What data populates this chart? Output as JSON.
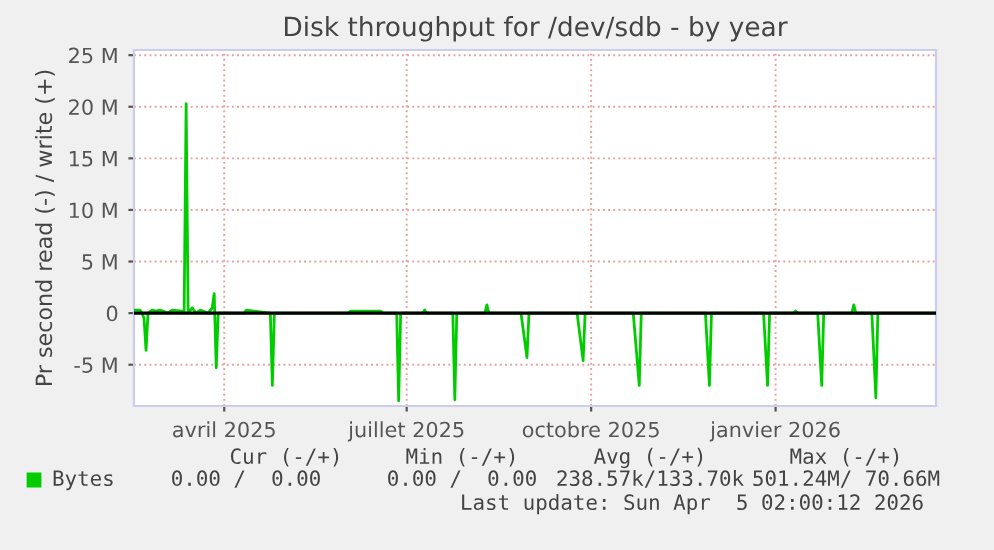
{
  "chart_data": {
    "type": "line",
    "title": "Disk throughput for /dev/sdb - by year",
    "ylabel": "Pr second read (-) / write (+)",
    "xlim": [
      "2025-03-01",
      "2026-04-05"
    ],
    "xticks": [
      {
        "value": "2025-04-15",
        "label": "avril 2025"
      },
      {
        "value": "2025-07-15",
        "label": "juillet 2025"
      },
      {
        "value": "2025-10-15",
        "label": "octobre 2025"
      },
      {
        "value": "2026-01-15",
        "label": "janvier 2026"
      }
    ],
    "ylim": [
      -9000000,
      25500000
    ],
    "yticks": [
      {
        "value": -5000000,
        "label": "-5 M"
      },
      0,
      {
        "value": 5000000,
        "label": "5 M"
      },
      {
        "value": 10000000,
        "label": "10 M"
      },
      {
        "value": 15000000,
        "label": "15 M"
      },
      {
        "value": 20000000,
        "label": "20 M"
      },
      {
        "value": 25000000,
        "label": "25 M"
      }
    ],
    "grid": true,
    "legend": "bottom left",
    "marker": "none",
    "line_style": "solid",
    "ref_lines": [
      {
        "axis": "y",
        "value": 0,
        "color": "#000000"
      }
    ],
    "series": [
      {
        "name": "Bytes",
        "color": "#00cc00",
        "x": [
          "2025-03-01",
          "2025-03-04",
          "2025-03-05",
          "2025-03-06",
          "2025-03-07",
          "2025-03-08",
          "2025-03-10",
          "2025-03-12",
          "2025-03-14",
          "2025-03-18",
          "2025-03-20",
          "2025-03-25",
          "2025-03-26",
          "2025-03-27",
          "2025-03-28",
          "2025-03-30",
          "2025-04-01",
          "2025-04-03",
          "2025-04-07",
          "2025-04-09",
          "2025-04-10",
          "2025-04-11",
          "2025-04-12",
          "2025-04-25",
          "2025-04-26",
          "2025-05-08",
          "2025-05-09",
          "2025-05-10",
          "2025-06-16",
          "2025-06-17",
          "2025-07-02",
          "2025-07-03",
          "2025-07-10",
          "2025-07-11",
          "2025-07-12",
          "2025-07-23",
          "2025-07-24",
          "2025-07-25",
          "2025-08-07",
          "2025-08-08",
          "2025-08-09",
          "2025-08-23",
          "2025-08-24",
          "2025-08-25",
          "2025-09-10",
          "2025-09-13",
          "2025-09-14",
          "2025-10-08",
          "2025-10-11",
          "2025-10-12",
          "2025-11-05",
          "2025-11-08",
          "2025-11-09",
          "2025-12-11",
          "2025-12-13",
          "2025-12-14",
          "2026-01-09",
          "2026-01-11",
          "2026-01-12",
          "2026-01-24",
          "2026-01-25",
          "2026-01-26",
          "2026-02-05",
          "2026-02-07",
          "2026-02-08",
          "2026-02-22",
          "2026-02-23",
          "2026-02-24",
          "2026-03-04",
          "2026-03-06",
          "2026-03-07",
          "2026-04-05"
        ],
        "values": [
          300000,
          300000,
          0,
          -500000,
          -3600000,
          0,
          300000,
          200000,
          300000,
          0,
          300000,
          200000,
          0,
          20300000,
          0,
          500000,
          0,
          300000,
          0,
          500000,
          1900000,
          -5300000,
          0,
          0,
          300000,
          0,
          -7000000,
          0,
          0,
          200000,
          200000,
          0,
          0,
          -8500000,
          0,
          0,
          300000,
          0,
          0,
          -8400000,
          0,
          0,
          800000,
          0,
          0,
          -4300000,
          0,
          0,
          -4600000,
          0,
          0,
          -7000000,
          0,
          0,
          -7000000,
          0,
          0,
          -7000000,
          0,
          0,
          200000,
          0,
          0,
          -7000000,
          0,
          0,
          800000,
          0,
          0,
          -8200000,
          0,
          0
        ]
      }
    ],
    "annotations": [
      "Cur (-/+)",
      "Min (-/+)",
      "Avg (-/+)",
      "Max (-/+)",
      "0.00 /  0.00",
      "0.00 /  0.00",
      "238.57k/133.70k",
      "501.24M/ 70.66M",
      "Last update: Sun Apr  5 02:00:12 2026"
    ]
  }
}
